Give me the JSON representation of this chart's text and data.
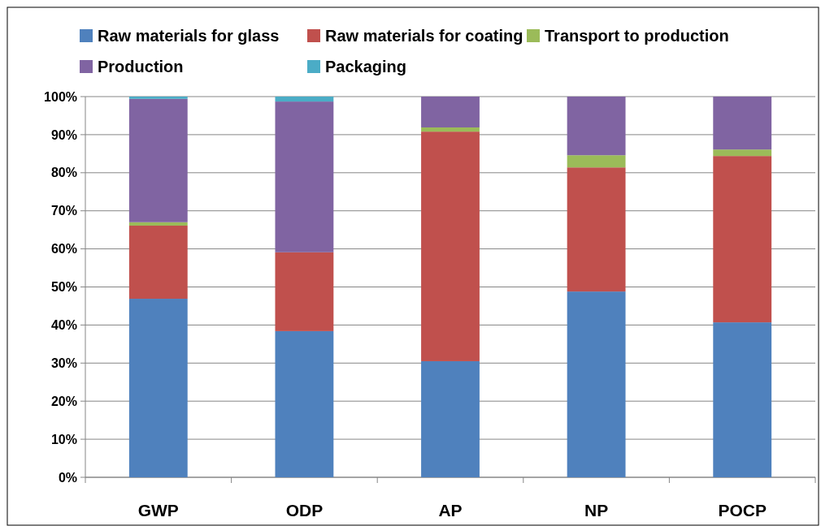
{
  "chart_data": {
    "type": "bar",
    "stacked": true,
    "categories": [
      "GWP",
      "ODP",
      "AP",
      "NP",
      "POCP"
    ],
    "series": [
      {
        "name": "Raw materials for glass",
        "color": "#4f81bd",
        "values": [
          46.9,
          38.4,
          30.5,
          48.8,
          40.7
        ]
      },
      {
        "name": "Raw materials for coating",
        "color": "#c0504d",
        "values": [
          19.2,
          20.7,
          60.3,
          32.6,
          43.7
        ]
      },
      {
        "name": "Transport to production",
        "color": "#9bbb59",
        "values": [
          0.9,
          0,
          1.1,
          3.2,
          1.7
        ]
      },
      {
        "name": "Production",
        "color": "#8064a2",
        "values": [
          32.4,
          39.6,
          8.1,
          15.4,
          13.9
        ]
      },
      {
        "name": "Packaging",
        "color": "#4bacc6",
        "values": [
          0.6,
          1.3,
          0,
          0,
          0
        ]
      }
    ],
    "ylim": [
      0,
      100
    ],
    "yticks": [
      {
        "value": 0,
        "label": "0%"
      },
      {
        "value": 10,
        "label": "10%"
      },
      {
        "value": 20,
        "label": "20%"
      },
      {
        "value": 30,
        "label": "30%"
      },
      {
        "value": 40,
        "label": "40%"
      },
      {
        "value": 50,
        "label": "50%"
      },
      {
        "value": 60,
        "label": "60%"
      },
      {
        "value": 70,
        "label": "70%"
      },
      {
        "value": 80,
        "label": "80%"
      },
      {
        "value": 90,
        "label": "90%"
      },
      {
        "value": 100,
        "label": "100%"
      }
    ],
    "grid": "y",
    "legend": "top"
  }
}
